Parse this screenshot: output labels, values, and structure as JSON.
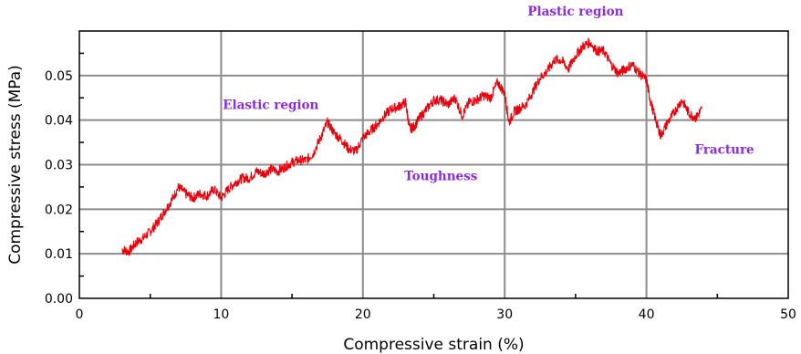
{
  "chart_data": {
    "type": "line",
    "xlabel": "Compressive strain (%)",
    "ylabel": "Compressive stress (MPa)",
    "xlim": [
      0,
      50
    ],
    "ylim": [
      0,
      0.06
    ],
    "x_ticks": [
      0,
      10,
      20,
      30,
      40,
      50
    ],
    "x_tick_labels": [
      "0",
      "10",
      "20",
      "30",
      "40",
      "50"
    ],
    "y_ticks": [
      0,
      0.01,
      0.02,
      0.03,
      0.04,
      0.05
    ],
    "y_tick_labels": [
      "0.00",
      "0.01",
      "0.02",
      "0.03",
      "0.04",
      "0.05"
    ],
    "grid": true,
    "series_color": "#e8000b",
    "annotation_color": "#8a2be2",
    "series": [
      {
        "x": [
          3.0,
          3.5,
          4.0,
          4.5,
          5.0,
          5.5,
          6.0,
          6.5,
          7.0,
          7.5,
          8.0,
          8.5,
          9.0,
          9.5,
          10.0,
          10.5,
          11.0,
          11.5,
          12.0,
          12.5,
          13.0,
          13.5,
          14.0,
          14.5,
          15.0,
          15.5,
          16.0,
          16.5,
          17.0,
          17.5,
          18.0,
          18.5,
          19.0,
          19.5,
          20.0,
          20.5,
          21.0,
          21.5,
          22.0,
          22.5,
          23.0,
          23.3,
          23.6,
          24.0,
          24.5,
          25.0,
          25.5,
          26.0,
          26.5,
          27.0,
          27.5,
          28.0,
          28.5,
          29.0,
          29.5,
          30.0,
          30.3,
          30.7,
          31.0,
          31.5,
          32.0,
          32.5,
          33.0,
          33.5,
          34.0,
          34.5,
          35.0,
          35.5,
          36.0,
          36.5,
          37.0,
          37.5,
          38.0,
          38.5,
          39.0,
          39.5,
          40.0,
          40.3,
          40.7,
          41.0,
          41.5,
          42.0,
          42.5,
          43.0,
          43.5,
          43.9
        ],
        "y": [
          0.011,
          0.0105,
          0.0125,
          0.0135,
          0.015,
          0.017,
          0.0195,
          0.022,
          0.025,
          0.0235,
          0.0225,
          0.0235,
          0.023,
          0.0245,
          0.0225,
          0.0245,
          0.026,
          0.027,
          0.027,
          0.0285,
          0.028,
          0.029,
          0.0285,
          0.0295,
          0.0305,
          0.031,
          0.031,
          0.0325,
          0.036,
          0.0395,
          0.037,
          0.0355,
          0.0335,
          0.033,
          0.036,
          0.0375,
          0.039,
          0.041,
          0.0425,
          0.043,
          0.044,
          0.038,
          0.0385,
          0.0405,
          0.0425,
          0.0445,
          0.0445,
          0.0435,
          0.045,
          0.041,
          0.044,
          0.0445,
          0.0455,
          0.045,
          0.0485,
          0.046,
          0.0395,
          0.042,
          0.0425,
          0.0435,
          0.0465,
          0.0495,
          0.051,
          0.0535,
          0.0535,
          0.0515,
          0.0545,
          0.0565,
          0.0575,
          0.0555,
          0.0555,
          0.0525,
          0.0505,
          0.0515,
          0.0525,
          0.0505,
          0.049,
          0.044,
          0.0395,
          0.0365,
          0.0395,
          0.042,
          0.0445,
          0.0415,
          0.0405,
          0.0425
        ]
      }
    ],
    "annotations": [
      {
        "text": "Plastic region",
        "x": 35.0,
        "y": 0.0635
      },
      {
        "text": "Elastic region",
        "x": 13.5,
        "y": 0.0425
      },
      {
        "text": "Toughness",
        "x": 25.5,
        "y": 0.0265
      },
      {
        "text": "Fracture",
        "x": 45.5,
        "y": 0.0325
      }
    ]
  }
}
